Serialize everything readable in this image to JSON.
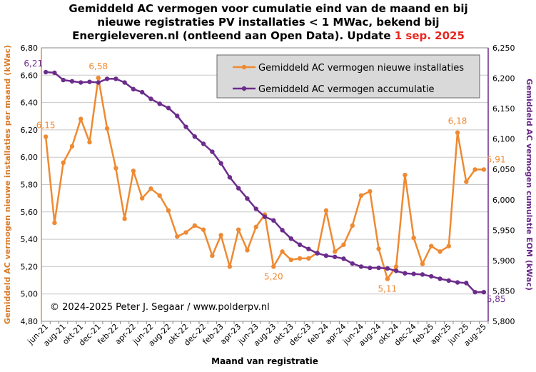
{
  "chart_data": {
    "type": "line",
    "title_lines": [
      "Gemiddeld AC vermogen voor cumulatie  eind van de maand en bij",
      "nieuwe registraties PV installaties  < 1 MWac, bekend bij",
      "Energieleveren.nl  (ontleend aan Open Data). Update "
    ],
    "title_update_date": "1 sep. 2025",
    "xlabel": "Maand van registratie",
    "ylabel_left": "Gemiddeld AC vermogen nieuwe installaties per maand (kWac)",
    "ylabel_right": "Gemiddeld AC vermogen cumulatie EOM (kWac)",
    "ylim_left": [
      4.8,
      6.8
    ],
    "ylim_right": [
      5800,
      6250
    ],
    "yticks_left": [
      "4,80",
      "5,00",
      "5,20",
      "5,40",
      "5,60",
      "5,80",
      "6,00",
      "6,20",
      "6,40",
      "6,60",
      "6,80"
    ],
    "yticks_right": [
      "5,800",
      "5,850",
      "5,900",
      "5,950",
      "6,000",
      "6,050",
      "6,100",
      "6,150",
      "6,200",
      "6,250"
    ],
    "x_tick_labels": [
      "jun-21",
      "aug-21",
      "okt-21",
      "dec-21",
      "feb-22",
      "apr-22",
      "jun-22",
      "aug-22",
      "okt-22",
      "dec-22",
      "feb-23",
      "apr-23",
      "jun-23",
      "aug-23",
      "okt-23",
      "dec-23",
      "feb-24",
      "apr-24",
      "jun-24",
      "aug-24",
      "okt-24",
      "dec-24",
      "feb-25",
      "apr-25",
      "jun-25",
      "aug-25"
    ],
    "months": [
      "jun-21",
      "jul-21",
      "aug-21",
      "sep-21",
      "okt-21",
      "nov-21",
      "dec-21",
      "jan-22",
      "feb-22",
      "mrt-22",
      "apr-22",
      "mei-22",
      "jun-22",
      "jul-22",
      "aug-22",
      "sep-22",
      "okt-22",
      "nov-22",
      "dec-22",
      "jan-23",
      "feb-23",
      "mrt-23",
      "apr-23",
      "mei-23",
      "jun-23",
      "jul-23",
      "aug-23",
      "sep-23",
      "okt-23",
      "nov-23",
      "dec-23",
      "jan-24",
      "feb-24",
      "mrt-24",
      "apr-24",
      "mei-24",
      "jun-24",
      "jul-24",
      "aug-24",
      "sep-24",
      "okt-24",
      "nov-24",
      "dec-24",
      "jan-25",
      "feb-25",
      "mrt-25",
      "apr-25",
      "mei-25",
      "jun-25",
      "jul-25",
      "aug-25"
    ],
    "series": [
      {
        "name": "Gemiddeld AC vermogen nieuwe installaties",
        "axis": "left",
        "color": "#ee8a32",
        "values": [
          6.15,
          5.52,
          5.96,
          6.08,
          6.28,
          6.11,
          6.58,
          6.21,
          5.92,
          5.55,
          5.9,
          5.7,
          5.77,
          5.72,
          5.61,
          5.42,
          5.45,
          5.5,
          5.47,
          5.28,
          5.43,
          5.2,
          5.47,
          5.32,
          5.49,
          5.58,
          5.2,
          5.31,
          5.25,
          5.26,
          5.26,
          5.3,
          5.61,
          5.31,
          5.36,
          5.5,
          5.72,
          5.75,
          5.33,
          5.11,
          5.2,
          5.87,
          5.41,
          5.22,
          5.35,
          5.31,
          5.35,
          6.18,
          5.82,
          5.91,
          5.91
        ]
      },
      {
        "name": "Gemiddeld AC vermogen accumulatie",
        "axis": "right",
        "color": "#6c2c8c",
        "values": [
          6210,
          6209,
          6197,
          6195,
          6193,
          6194,
          6193,
          6199,
          6199,
          6193,
          6182,
          6177,
          6166,
          6158,
          6151,
          6138,
          6120,
          6104,
          6092,
          6079,
          6060,
          6037,
          6019,
          6002,
          5985,
          5972,
          5966,
          5950,
          5936,
          5926,
          5919,
          5912,
          5908,
          5906,
          5903,
          5895,
          5890,
          5888,
          5888,
          5887,
          5883,
          5879,
          5878,
          5877,
          5874,
          5870,
          5867,
          5864,
          5863,
          5848,
          5848
        ]
      }
    ],
    "annotations": [
      {
        "label": "6,15",
        "series": 0,
        "index": 0,
        "pos": "above"
      },
      {
        "label": "6,58",
        "series": 0,
        "index": 6,
        "pos": "above"
      },
      {
        "label": "5,20",
        "series": 0,
        "index": 26,
        "pos": "below"
      },
      {
        "label": "5,11",
        "series": 0,
        "index": 39,
        "pos": "below"
      },
      {
        "label": "6,18",
        "series": 0,
        "index": 47,
        "pos": "above"
      },
      {
        "label": "5,91",
        "series": 0,
        "index": 50,
        "pos": "right"
      },
      {
        "label": "6,21",
        "series": 1,
        "index": 0,
        "pos": "left"
      },
      {
        "label": "5,85",
        "series": 1,
        "index": 50,
        "pos": "right"
      }
    ],
    "legend_position": "top-right",
    "grid": true,
    "credit": "© 2024-2025  Peter J. Segaar / www.polderpv.nl"
  }
}
